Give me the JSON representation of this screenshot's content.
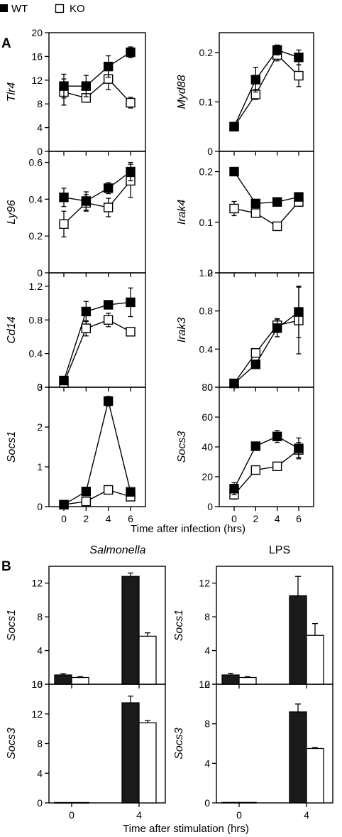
{
  "legend": [
    {
      "label": "WT",
      "fill": "#000000"
    },
    {
      "label": "KO",
      "fill": "#ffffff"
    }
  ],
  "panel_a": {
    "letter": "A",
    "xlabel": "Time after infection (hrs)",
    "x_ticks": [
      "0",
      "2",
      "4",
      "6"
    ]
  },
  "panel_b": {
    "letter": "B",
    "xlabel": "Time after stimulation (hrs)",
    "columns": [
      "Salmonella",
      "LPS"
    ],
    "x_ticks": [
      "0",
      "4"
    ]
  },
  "chart_data": [
    {
      "type": "line",
      "panel": "A",
      "ylabel": "Tlr4",
      "x": [
        0,
        2,
        4,
        6
      ],
      "ylim": [
        0,
        20
      ],
      "yticks": [
        "0",
        "4",
        "8",
        "12",
        "16",
        "20"
      ],
      "series": [
        {
          "name": "WT",
          "values": [
            11,
            11,
            14.3,
            16.7
          ],
          "errors": [
            2,
            1.8,
            1.8,
            0.9
          ]
        },
        {
          "name": "KO",
          "values": [
            10,
            9,
            12.2,
            8.2
          ],
          "errors": [
            2.2,
            0.6,
            1.8,
            0.9
          ]
        }
      ]
    },
    {
      "type": "line",
      "panel": "A",
      "ylabel": "Myd88",
      "x": [
        0,
        2,
        4,
        6
      ],
      "ylim": [
        0,
        0.24
      ],
      "yticks": [
        "0",
        "0.1",
        "0.2"
      ],
      "series": [
        {
          "name": "WT",
          "values": [
            0.05,
            0.145,
            0.205,
            0.19
          ],
          "errors": [
            0.005,
            0.025,
            0.01,
            0.015
          ]
        },
        {
          "name": "KO",
          "values": [
            0.05,
            0.115,
            0.195,
            0.153
          ],
          "errors": [
            0.005,
            0.01,
            0.012,
            0.022
          ]
        }
      ]
    },
    {
      "type": "line",
      "panel": "A",
      "ylabel": "Ly96",
      "x": [
        0,
        2,
        4,
        6
      ],
      "ylim": [
        0,
        0.66
      ],
      "yticks": [
        "0",
        "0.2",
        "0.4",
        "0.6"
      ],
      "series": [
        {
          "name": "WT",
          "values": [
            0.41,
            0.39,
            0.46,
            0.55
          ],
          "errors": [
            0.05,
            0.05,
            0.03,
            0.05
          ]
        },
        {
          "name": "KO",
          "values": [
            0.265,
            0.38,
            0.355,
            0.5
          ],
          "errors": [
            0.07,
            0.045,
            0.05,
            0.09
          ]
        }
      ]
    },
    {
      "type": "line",
      "panel": "A",
      "ylabel": "Irak4",
      "x": [
        0,
        2,
        4,
        6
      ],
      "ylim": [
        0,
        0.24
      ],
      "yticks": [
        "0",
        "0.1",
        "0.2"
      ],
      "series": [
        {
          "name": "WT",
          "values": [
            0.2,
            0.137,
            0.14,
            0.15
          ],
          "errors": [
            0.005,
            0.008,
            0.005,
            0.008
          ]
        },
        {
          "name": "KO",
          "values": [
            0.127,
            0.118,
            0.092,
            0.14
          ],
          "errors": [
            0.014,
            0.005,
            0.005,
            0.008
          ]
        }
      ]
    },
    {
      "type": "line",
      "panel": "A",
      "ylabel": "Cd14",
      "x": [
        0,
        2,
        4,
        6
      ],
      "ylim": [
        0,
        1.36
      ],
      "yticks": [
        "0",
        "0.4",
        "0.8",
        "1.2"
      ],
      "series": [
        {
          "name": "WT",
          "values": [
            0.08,
            0.9,
            0.98,
            1.01
          ],
          "errors": [
            0.02,
            0.12,
            0.04,
            0.17
          ]
        },
        {
          "name": "KO",
          "values": [
            0.05,
            0.7,
            0.8,
            0.66
          ],
          "errors": [
            0.02,
            0.09,
            0.08,
            0.04
          ]
        }
      ]
    },
    {
      "type": "line",
      "panel": "A",
      "ylabel": "Irak3",
      "x": [
        0,
        2,
        4,
        6
      ],
      "ylim": [
        0,
        1.2
      ],
      "yticks": [
        "0",
        "0.4",
        "0.8",
        "1.2"
      ],
      "series": [
        {
          "name": "WT",
          "values": [
            0.04,
            0.24,
            0.62,
            0.79
          ],
          "errors": [
            0.01,
            0.03,
            0.09,
            0.27
          ]
        },
        {
          "name": "KO",
          "values": [
            0.04,
            0.36,
            0.65,
            0.7
          ],
          "errors": [
            0.01,
            0.03,
            0.07,
            0.35
          ]
        }
      ]
    },
    {
      "type": "line",
      "panel": "A",
      "ylabel": "Socs1",
      "x": [
        0,
        2,
        4,
        6
      ],
      "ylim": [
        0,
        3
      ],
      "yticks": [
        "0",
        "1",
        "2",
        "3"
      ],
      "series": [
        {
          "name": "WT",
          "values": [
            0.05,
            0.38,
            2.65,
            0.37
          ],
          "errors": [
            0.02,
            0.1,
            0.12,
            0.08
          ]
        },
        {
          "name": "KO",
          "values": [
            0.05,
            0.13,
            0.42,
            0.25
          ],
          "errors": [
            0.02,
            0.04,
            0.05,
            0.1
          ]
        }
      ]
    },
    {
      "type": "line",
      "panel": "A",
      "ylabel": "Socs3",
      "x": [
        0,
        2,
        4,
        6
      ],
      "ylim": [
        0,
        80
      ],
      "yticks": [
        "0",
        "20",
        "40",
        "60",
        "80"
      ],
      "series": [
        {
          "name": "WT",
          "values": [
            12,
            40.5,
            47,
            39
          ],
          "errors": [
            4,
            2,
            4,
            7
          ]
        },
        {
          "name": "KO",
          "values": [
            8,
            24.5,
            27,
            38
          ],
          "errors": [
            3,
            1.5,
            1.5,
            5
          ]
        }
      ]
    },
    {
      "type": "bar",
      "panel": "B",
      "column": "Salmonella",
      "ylabel": "Socs1",
      "categories": [
        "0",
        "4"
      ],
      "ylim": [
        0,
        14
      ],
      "yticks": [
        "0",
        "4",
        "8",
        "12"
      ],
      "series": [
        {
          "name": "WT",
          "values": [
            1.1,
            12.8
          ],
          "errors": [
            0.15,
            0.4
          ]
        },
        {
          "name": "KO",
          "values": [
            0.8,
            5.7
          ],
          "errors": [
            0.1,
            0.4
          ]
        }
      ]
    },
    {
      "type": "bar",
      "panel": "B",
      "column": "LPS",
      "ylabel": "Socs1",
      "categories": [
        "0",
        "4"
      ],
      "ylim": [
        0,
        14
      ],
      "yticks": [
        "0",
        "4",
        "8",
        "12"
      ],
      "series": [
        {
          "name": "WT",
          "values": [
            1.1,
            10.5
          ],
          "errors": [
            0.2,
            2.3
          ]
        },
        {
          "name": "KO",
          "values": [
            0.8,
            5.8
          ],
          "errors": [
            0.1,
            1.4
          ]
        }
      ]
    },
    {
      "type": "bar",
      "panel": "B",
      "column": "Salmonella",
      "ylabel": "Socs3",
      "categories": [
        "0",
        "4"
      ],
      "ylim": [
        0,
        16
      ],
      "yticks": [
        "0",
        "4",
        "8",
        "12",
        "16"
      ],
      "series": [
        {
          "name": "WT",
          "values": [
            0.05,
            13.5
          ],
          "errors": [
            0,
            0.9
          ]
        },
        {
          "name": "KO",
          "values": [
            0.05,
            10.8
          ],
          "errors": [
            0,
            0.3
          ]
        }
      ]
    },
    {
      "type": "bar",
      "panel": "B",
      "column": "LPS",
      "ylabel": "Socs3",
      "categories": [
        "0",
        "4"
      ],
      "ylim": [
        0,
        12
      ],
      "yticks": [
        "0",
        "4",
        "8",
        "12"
      ],
      "series": [
        {
          "name": "WT",
          "values": [
            0.05,
            9.2
          ],
          "errors": [
            0,
            0.8
          ]
        },
        {
          "name": "KO",
          "values": [
            0.05,
            5.5
          ],
          "errors": [
            0,
            0.1
          ]
        }
      ]
    }
  ]
}
